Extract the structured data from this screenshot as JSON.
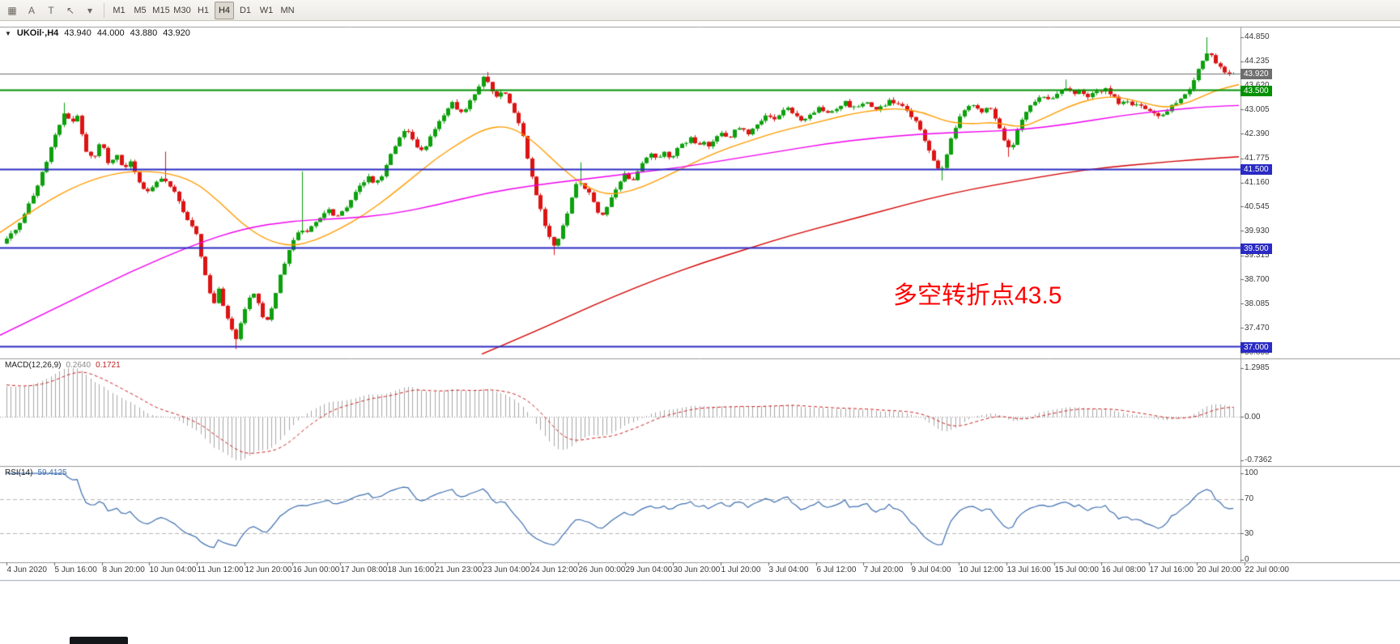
{
  "toolbar": {
    "tools": [
      {
        "id": "chart-grid",
        "glyph": "▦"
      },
      {
        "id": "text-tool",
        "glyph": "A"
      },
      {
        "id": "shapes-tool",
        "glyph": "T"
      },
      {
        "id": "cursor-tool",
        "glyph": "↖"
      },
      {
        "id": "tools-dropdown",
        "glyph": "▾"
      }
    ],
    "periods": [
      {
        "label": "M1",
        "active": false
      },
      {
        "label": "M5",
        "active": false
      },
      {
        "label": "M15",
        "active": false
      },
      {
        "label": "M30",
        "active": false
      },
      {
        "label": "H1",
        "active": false
      },
      {
        "label": "H4",
        "active": true
      },
      {
        "label": "D1",
        "active": false
      },
      {
        "label": "W1",
        "active": false
      },
      {
        "label": "MN",
        "active": false
      }
    ]
  },
  "chart": {
    "title": {
      "symbol_tf": "UKOil·,H4",
      "open": "43.940",
      "high": "44.000",
      "low": "43.880",
      "close": "43.920"
    },
    "annotation": {
      "text": "多空转折点43.5",
      "color": "#ff0000"
    }
  },
  "price_axis": {
    "labels": [
      "44.850",
      "44.235",
      "43.620",
      "43.005",
      "42.390",
      "41.775",
      "41.160",
      "40.545",
      "39.930",
      "39.315",
      "38.700",
      "38.085",
      "37.470",
      "36.855"
    ]
  },
  "macd_panel": {
    "title": "MACD(12,26,9)",
    "value_macd": "0.2640",
    "value_signal": "0.1721",
    "axis": [
      "1.2985",
      "0.00",
      "-0.7362"
    ]
  },
  "rsi_panel": {
    "title": "RSI(14)",
    "value": "59.4125",
    "axis": [
      "100",
      "70",
      "30",
      "0"
    ]
  },
  "time_axis": {
    "labels": [
      "4 Jun 2020",
      "5 Jun 16:00",
      "8 Jun 20:00",
      "10 Jun 04:00",
      "11 Jun 12:00",
      "12 Jun 20:00",
      "16 Jun 00:00",
      "17 Jun 08:00",
      "18 Jun 16:00",
      "21 Jun 23:00",
      "23 Jun 04:00",
      "24 Jun 12:00",
      "26 Jun 00:00",
      "29 Jun 04:00",
      "30 Jun 20:00",
      "1 Jul 20:00",
      "3 Jul 04:00",
      "6 Jul 12:00",
      "7 Jul 20:00",
      "9 Jul 04:00",
      "10 Jul 12:00",
      "13 Jul 16:00",
      "15 Jul 00:00",
      "16 Jul 08:00",
      "17 Jul 16:00",
      "20 Jul 20:00",
      "22 Jul 00:00"
    ]
  },
  "chart_data": {
    "type": "candlestick",
    "symbol": "UKOil",
    "timeframe": "H4",
    "current_ohlc": {
      "open": 43.94,
      "high": 44.0,
      "low": 43.88,
      "close": 43.92
    },
    "visible_range": {
      "start": "4 Jun 2020",
      "end": "22 Jul 2020"
    },
    "candle_colors": {
      "up": "#0da00d",
      "down": "#dc1414"
    },
    "price_path": [
      [
        -440,
        32.5
      ],
      [
        -360,
        33.8
      ],
      [
        -290,
        34.6
      ],
      [
        -230,
        35.2
      ],
      [
        -170,
        36.2
      ],
      [
        -110,
        37.6
      ],
      [
        -60,
        38.8
      ],
      [
        -20,
        39.4
      ],
      [
        0,
        39.6
      ],
      [
        12,
        39.8
      ],
      [
        25,
        40.2
      ],
      [
        40,
        40.8
      ],
      [
        55,
        41.6
      ],
      [
        68,
        42.4
      ],
      [
        78,
        42.9
      ],
      [
        88,
        42.7
      ],
      [
        95,
        42.9
      ],
      [
        105,
        42.0
      ],
      [
        115,
        41.8
      ],
      [
        125,
        42.2
      ],
      [
        135,
        41.6
      ],
      [
        145,
        41.9
      ],
      [
        152,
        41.5
      ],
      [
        160,
        41.7
      ],
      [
        170,
        41.2
      ],
      [
        180,
        40.9
      ],
      [
        190,
        41.1
      ],
      [
        200,
        41.3
      ],
      [
        208,
        41.1
      ],
      [
        215,
        40.9
      ],
      [
        225,
        40.5
      ],
      [
        235,
        40.1
      ],
      [
        243,
        39.8
      ],
      [
        252,
        38.9
      ],
      [
        258,
        38.4
      ],
      [
        264,
        38.1
      ],
      [
        270,
        38.5
      ],
      [
        276,
        38.0
      ],
      [
        284,
        37.5
      ],
      [
        292,
        37.15
      ],
      [
        298,
        37.7
      ],
      [
        305,
        38.1
      ],
      [
        312,
        38.4
      ],
      [
        318,
        38.1
      ],
      [
        324,
        37.8
      ],
      [
        330,
        37.65
      ],
      [
        338,
        38.2
      ],
      [
        346,
        38.8
      ],
      [
        354,
        39.3
      ],
      [
        362,
        39.7
      ],
      [
        370,
        40.0
      ],
      [
        378,
        39.9
      ],
      [
        386,
        40.1
      ],
      [
        395,
        40.3
      ],
      [
        405,
        40.5
      ],
      [
        415,
        40.3
      ],
      [
        425,
        40.5
      ],
      [
        435,
        40.8
      ],
      [
        445,
        41.1
      ],
      [
        455,
        41.3
      ],
      [
        462,
        41.1
      ],
      [
        470,
        41.3
      ],
      [
        478,
        41.7
      ],
      [
        486,
        42.0
      ],
      [
        494,
        42.4
      ],
      [
        502,
        42.5
      ],
      [
        510,
        42.2
      ],
      [
        518,
        41.9
      ],
      [
        526,
        42.1
      ],
      [
        534,
        42.4
      ],
      [
        542,
        42.7
      ],
      [
        550,
        43.0
      ],
      [
        558,
        43.2
      ],
      [
        566,
        42.9
      ],
      [
        574,
        43.0
      ],
      [
        582,
        43.3
      ],
      [
        590,
        43.6
      ],
      [
        597,
        43.85
      ],
      [
        604,
        43.7
      ],
      [
        610,
        43.3
      ],
      [
        617,
        43.5
      ],
      [
        624,
        43.4
      ],
      [
        631,
        43.1
      ],
      [
        638,
        42.8
      ],
      [
        645,
        42.4
      ],
      [
        652,
        41.7
      ],
      [
        659,
        41.1
      ],
      [
        666,
        40.6
      ],
      [
        673,
        40.1
      ],
      [
        680,
        39.7
      ],
      [
        686,
        39.5
      ],
      [
        692,
        39.9
      ],
      [
        699,
        40.3
      ],
      [
        706,
        40.8
      ],
      [
        713,
        41.2
      ],
      [
        720,
        41.1
      ],
      [
        727,
        40.9
      ],
      [
        734,
        40.6
      ],
      [
        741,
        40.3
      ],
      [
        748,
        40.5
      ],
      [
        756,
        40.8
      ],
      [
        764,
        41.1
      ],
      [
        772,
        41.4
      ],
      [
        780,
        41.2
      ],
      [
        788,
        41.5
      ],
      [
        796,
        41.7
      ],
      [
        804,
        41.9
      ],
      [
        812,
        41.7
      ],
      [
        820,
        41.95
      ],
      [
        828,
        41.8
      ],
      [
        836,
        42.0
      ],
      [
        844,
        42.15
      ],
      [
        852,
        42.3
      ],
      [
        860,
        42.1
      ],
      [
        868,
        42.25
      ],
      [
        876,
        42.1
      ],
      [
        884,
        42.3
      ],
      [
        892,
        42.45
      ],
      [
        900,
        42.3
      ],
      [
        908,
        42.5
      ],
      [
        916,
        42.6
      ],
      [
        924,
        42.4
      ],
      [
        932,
        42.6
      ],
      [
        940,
        42.75
      ],
      [
        948,
        42.9
      ],
      [
        956,
        42.75
      ],
      [
        964,
        42.9
      ],
      [
        972,
        43.1
      ],
      [
        980,
        42.9
      ],
      [
        988,
        42.7
      ],
      [
        996,
        42.85
      ],
      [
        1004,
        42.95
      ],
      [
        1012,
        43.05
      ],
      [
        1020,
        42.9
      ],
      [
        1028,
        43.0
      ],
      [
        1036,
        43.1
      ],
      [
        1044,
        43.2
      ],
      [
        1052,
        43.05
      ],
      [
        1060,
        43.1
      ],
      [
        1068,
        43.2
      ],
      [
        1076,
        43.1
      ],
      [
        1084,
        43.0
      ],
      [
        1092,
        43.15
      ],
      [
        1100,
        43.25
      ],
      [
        1108,
        43.15
      ],
      [
        1116,
        43.05
      ],
      [
        1124,
        42.9
      ],
      [
        1132,
        42.65
      ],
      [
        1140,
        42.3
      ],
      [
        1148,
        41.95
      ],
      [
        1156,
        41.6
      ],
      [
        1162,
        41.4
      ],
      [
        1168,
        41.8
      ],
      [
        1175,
        42.3
      ],
      [
        1182,
        42.7
      ],
      [
        1190,
        43.0
      ],
      [
        1198,
        43.2
      ],
      [
        1206,
        43.1
      ],
      [
        1214,
        42.95
      ],
      [
        1221,
        43.1
      ],
      [
        1228,
        42.85
      ],
      [
        1235,
        42.5
      ],
      [
        1242,
        42.1
      ],
      [
        1248,
        41.95
      ],
      [
        1255,
        42.4
      ],
      [
        1262,
        42.8
      ],
      [
        1270,
        43.1
      ],
      [
        1278,
        43.25
      ],
      [
        1286,
        43.35
      ],
      [
        1294,
        43.25
      ],
      [
        1302,
        43.35
      ],
      [
        1310,
        43.5
      ],
      [
        1318,
        43.6
      ],
      [
        1326,
        43.4
      ],
      [
        1334,
        43.5
      ],
      [
        1342,
        43.35
      ],
      [
        1350,
        43.45
      ],
      [
        1358,
        43.5
      ],
      [
        1366,
        43.55
      ],
      [
        1374,
        43.35
      ],
      [
        1382,
        43.15
      ],
      [
        1390,
        43.25
      ],
      [
        1398,
        43.1
      ],
      [
        1406,
        43.2
      ],
      [
        1414,
        43.05
      ],
      [
        1422,
        42.95
      ],
      [
        1430,
        42.85
      ],
      [
        1438,
        42.95
      ],
      [
        1446,
        43.1
      ],
      [
        1454,
        43.25
      ],
      [
        1462,
        43.4
      ],
      [
        1470,
        43.6
      ],
      [
        1478,
        43.95
      ],
      [
        1486,
        44.35
      ],
      [
        1492,
        44.5
      ],
      [
        1498,
        44.3
      ],
      [
        1504,
        44.15
      ],
      [
        1510,
        44.0
      ],
      [
        1516,
        43.95
      ],
      [
        1522,
        43.9
      ],
      [
        1528,
        43.92
      ]
    ],
    "spikes": [
      [
        78,
        43.19,
        "h"
      ],
      [
        205,
        41.95,
        "h"
      ],
      [
        292,
        36.95,
        "l"
      ],
      [
        374,
        41.45,
        "h"
      ],
      [
        600,
        43.97,
        "h"
      ],
      [
        683,
        39.33,
        "l"
      ],
      [
        714,
        41.68,
        "h"
      ],
      [
        1162,
        41.22,
        "l"
      ],
      [
        1247,
        41.82,
        "l"
      ],
      [
        1318,
        43.78,
        "h"
      ],
      [
        1492,
        44.85,
        "h"
      ]
    ],
    "moving_averages": [
      {
        "name": "ma-fast",
        "color": "#ff9c00",
        "path": [
          [
            0,
            39.9
          ],
          [
            50,
            40.6
          ],
          [
            100,
            41.15
          ],
          [
            150,
            41.45
          ],
          [
            200,
            41.45
          ],
          [
            240,
            41.2
          ],
          [
            270,
            40.7
          ],
          [
            300,
            40.1
          ],
          [
            330,
            39.7
          ],
          [
            360,
            39.55
          ],
          [
            390,
            39.7
          ],
          [
            420,
            40.0
          ],
          [
            450,
            40.35
          ],
          [
            480,
            40.8
          ],
          [
            510,
            41.3
          ],
          [
            540,
            41.8
          ],
          [
            570,
            42.2
          ],
          [
            600,
            42.55
          ],
          [
            630,
            42.6
          ],
          [
            660,
            42.2
          ],
          [
            690,
            41.6
          ],
          [
            720,
            41.1
          ],
          [
            750,
            40.85
          ],
          [
            780,
            40.95
          ],
          [
            810,
            41.2
          ],
          [
            840,
            41.5
          ],
          [
            870,
            41.8
          ],
          [
            900,
            42.05
          ],
          [
            930,
            42.25
          ],
          [
            960,
            42.45
          ],
          [
            990,
            42.6
          ],
          [
            1020,
            42.75
          ],
          [
            1050,
            42.9
          ],
          [
            1080,
            43.0
          ],
          [
            1110,
            43.05
          ],
          [
            1140,
            42.95
          ],
          [
            1170,
            42.7
          ],
          [
            1200,
            42.65
          ],
          [
            1230,
            42.7
          ],
          [
            1260,
            42.55
          ],
          [
            1290,
            42.8
          ],
          [
            1320,
            43.1
          ],
          [
            1350,
            43.3
          ],
          [
            1380,
            43.35
          ],
          [
            1410,
            43.2
          ],
          [
            1440,
            43.05
          ],
          [
            1470,
            43.2
          ],
          [
            1500,
            43.5
          ],
          [
            1530,
            43.65
          ]
        ]
      },
      {
        "name": "ma-mid",
        "color": "#f000f0",
        "path": [
          [
            0,
            37.3
          ],
          [
            80,
            38.1
          ],
          [
            160,
            38.9
          ],
          [
            240,
            39.6
          ],
          [
            300,
            40.0
          ],
          [
            360,
            40.2
          ],
          [
            420,
            40.25
          ],
          [
            480,
            40.35
          ],
          [
            540,
            40.6
          ],
          [
            600,
            40.9
          ],
          [
            660,
            41.1
          ],
          [
            720,
            41.25
          ],
          [
            780,
            41.4
          ],
          [
            840,
            41.55
          ],
          [
            900,
            41.75
          ],
          [
            960,
            41.95
          ],
          [
            1020,
            42.15
          ],
          [
            1080,
            42.3
          ],
          [
            1140,
            42.4
          ],
          [
            1200,
            42.45
          ],
          [
            1260,
            42.5
          ],
          [
            1320,
            42.65
          ],
          [
            1380,
            42.85
          ],
          [
            1440,
            43.0
          ],
          [
            1500,
            43.1
          ],
          [
            1530,
            43.12
          ]
        ]
      },
      {
        "name": "ma-slow",
        "color": "#d40000",
        "path": [
          [
            595,
            36.82
          ],
          [
            650,
            37.3
          ],
          [
            705,
            37.8
          ],
          [
            760,
            38.3
          ],
          [
            815,
            38.75
          ],
          [
            870,
            39.15
          ],
          [
            925,
            39.5
          ],
          [
            980,
            39.85
          ],
          [
            1035,
            40.15
          ],
          [
            1090,
            40.45
          ],
          [
            1145,
            40.75
          ],
          [
            1200,
            41.0
          ],
          [
            1255,
            41.2
          ],
          [
            1310,
            41.4
          ],
          [
            1365,
            41.55
          ],
          [
            1420,
            41.65
          ],
          [
            1475,
            41.75
          ],
          [
            1530,
            41.82
          ]
        ]
      }
    ],
    "levels": [
      {
        "price": 43.92,
        "color": "#6e6e6e",
        "width": 1,
        "label": "43.920",
        "role": "current-price"
      },
      {
        "price": 43.5,
        "color": "#009000",
        "width": 2,
        "label": "43.500",
        "role": "pivot-line"
      },
      {
        "price": 41.5,
        "color": "#2a2ac4",
        "width": 2,
        "label": "41.500",
        "role": "support-line"
      },
      {
        "price": 39.5,
        "color": "#2a2ac4",
        "width": 2,
        "label": "39.500",
        "role": "support-line"
      },
      {
        "price": 37.0,
        "color": "#2a2ac4",
        "width": 2,
        "label": "37.000",
        "role": "support-line"
      }
    ],
    "indicators": [
      {
        "name": "MACD",
        "params": [
          12,
          26,
          9
        ],
        "current": [
          0.264,
          0.1721
        ],
        "scale": {
          "max": 1.2985,
          "min": -0.7362
        },
        "histogram_color": "#a8a8a8",
        "signal_color": "#cc2222"
      },
      {
        "name": "RSI",
        "params": [
          14
        ],
        "current": 59.4125,
        "levels": [
          70,
          30
        ],
        "color": "#3e6fb0"
      }
    ]
  }
}
